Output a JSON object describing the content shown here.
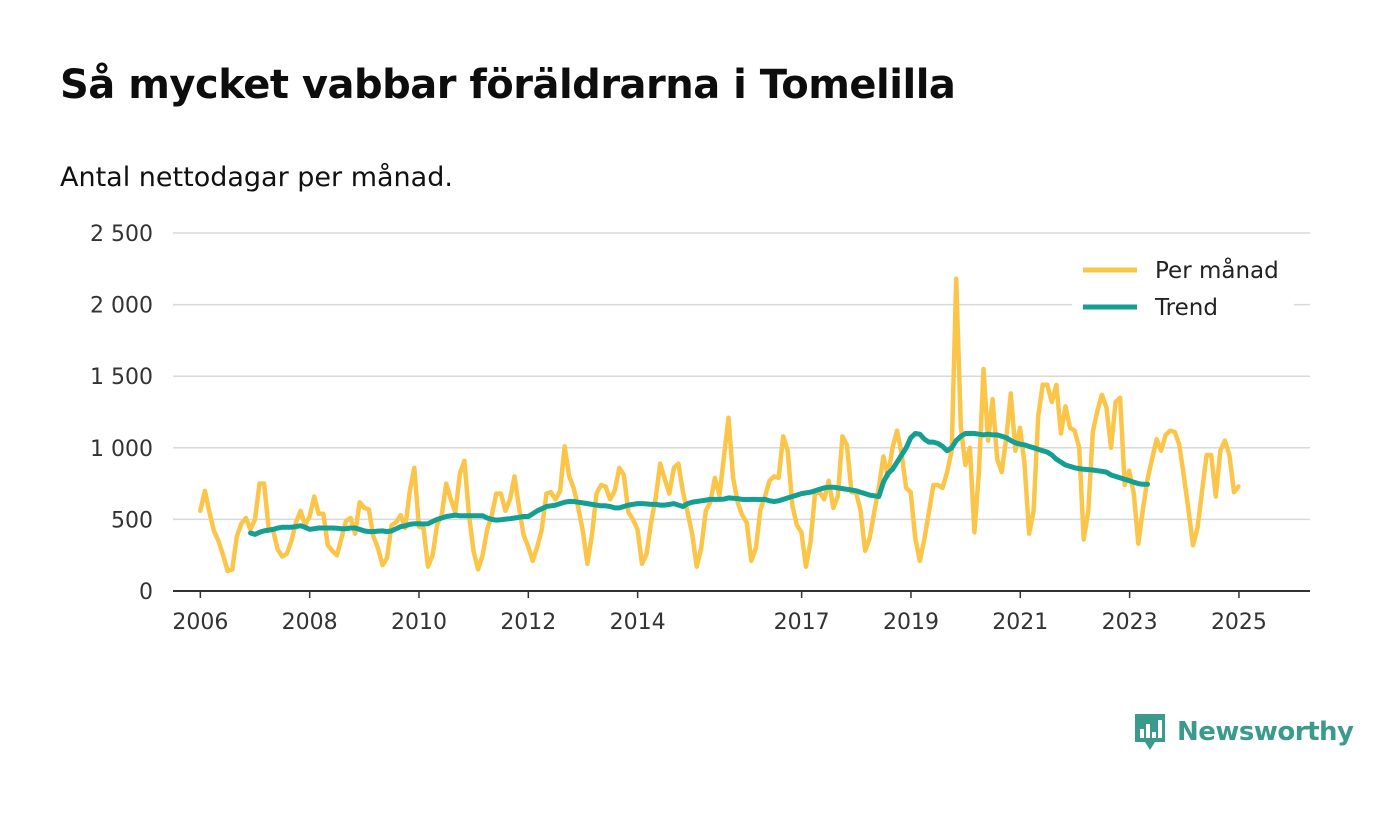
{
  "title": "Så mycket vabbar föräldrarna i Tomelilla",
  "subtitle": "Antal nettodagar per månad.",
  "brand": {
    "name": "Newsworthy",
    "icon": "bar-chart-logo-icon"
  },
  "colors": {
    "per_month": "#fbc54a",
    "trend": "#159f93",
    "grid": "#d9d9d9",
    "axis": "#333333",
    "brand": "#3a9a8c"
  },
  "chart_data": {
    "type": "line",
    "title": "Så mycket vabbar föräldrarna i Tomelilla",
    "subtitle": "Antal nettodagar per månad.",
    "xlabel": "",
    "ylabel": "",
    "ylim": [
      0,
      2500
    ],
    "xlim": [
      2005.5,
      2026.3
    ],
    "y_ticks": [
      {
        "value": 0,
        "label": "0"
      },
      {
        "value": 500,
        "label": "500"
      },
      {
        "value": 1000,
        "label": "1 000"
      },
      {
        "value": 1500,
        "label": "1 500"
      },
      {
        "value": 2000,
        "label": "2 000"
      },
      {
        "value": 2500,
        "label": "2 500"
      }
    ],
    "x_ticks": [
      {
        "value": 2006,
        "label": "2006"
      },
      {
        "value": 2008,
        "label": "2008"
      },
      {
        "value": 2010,
        "label": "2010"
      },
      {
        "value": 2012,
        "label": "2012"
      },
      {
        "value": 2014,
        "label": "2014"
      },
      {
        "value": 2017,
        "label": "2017"
      },
      {
        "value": 2019,
        "label": "2019"
      },
      {
        "value": 2021,
        "label": "2021"
      },
      {
        "value": 2023,
        "label": "2023"
      },
      {
        "value": 2025,
        "label": "2025"
      }
    ],
    "legend": {
      "position": "top-right"
    },
    "grid": true,
    "series": [
      {
        "name": "Per månad",
        "start": 2006,
        "step": 0.0833,
        "values": [
          560,
          700,
          550,
          420,
          350,
          250,
          140,
          150,
          380,
          470,
          510,
          430,
          500,
          750,
          750,
          440,
          420,
          290,
          240,
          260,
          350,
          480,
          560,
          460,
          520,
          660,
          540,
          540,
          320,
          280,
          250,
          370,
          490,
          510,
          400,
          620,
          580,
          570,
          380,
          300,
          180,
          230,
          460,
          480,
          530,
          440,
          700,
          860,
          450,
          440,
          170,
          250,
          460,
          530,
          750,
          640,
          550,
          820,
          910,
          530,
          280,
          150,
          250,
          430,
          530,
          680,
          680,
          560,
          640,
          800,
          580,
          390,
          310,
          210,
          310,
          430,
          680,
          690,
          640,
          700,
          1010,
          800,
          720,
          580,
          420,
          190,
          390,
          680,
          740,
          730,
          640,
          700,
          860,
          810,
          550,
          500,
          430,
          190,
          260,
          480,
          650,
          890,
          780,
          680,
          860,
          890,
          690,
          550,
          400,
          170,
          300,
          560,
          620,
          790,
          670,
          940,
          1210,
          790,
          620,
          530,
          480,
          210,
          300,
          570,
          660,
          770,
          800,
          790,
          1080,
          980,
          600,
          460,
          410,
          170,
          340,
          680,
          690,
          640,
          770,
          580,
          660,
          1080,
          1020,
          690,
          690,
          560,
          280,
          370,
          550,
          720,
          940,
          800,
          1000,
          1120,
          960,
          720,
          690,
          370,
          210,
          360,
          550,
          740,
          740,
          720,
          830,
          980,
          2180,
          1150,
          880,
          1000,
          410,
          840,
          1550,
          1050,
          1340,
          920,
          830,
          1070,
          1380,
          980,
          1140,
          890,
          400,
          560,
          1220,
          1440,
          1440,
          1320,
          1440,
          1100,
          1290,
          1140,
          1120,
          1000,
          360,
          560,
          1110,
          1260,
          1370,
          1280,
          1000,
          1320,
          1350,
          740,
          840,
          680,
          330,
          570,
          780,
          920,
          1060,
          980,
          1090,
          1120,
          1110,
          1020,
          800,
          570,
          320,
          440,
          700,
          950,
          950,
          660,
          980,
          1050,
          950,
          690,
          730
        ]
      },
      {
        "name": "Trend",
        "start": 2006.917,
        "step": 0.0833,
        "values": [
          405,
          395,
          410,
          420,
          425,
          430,
          440,
          445,
          445,
          445,
          450,
          455,
          445,
          430,
          435,
          440,
          440,
          440,
          440,
          438,
          435,
          436,
          440,
          440,
          430,
          420,
          415,
          415,
          418,
          420,
          415,
          420,
          435,
          450,
          455,
          465,
          470,
          470,
          468,
          470,
          485,
          500,
          510,
          520,
          525,
          530,
          525,
          525,
          525,
          525,
          525,
          525,
          510,
          500,
          495,
          498,
          502,
          505,
          510,
          515,
          520,
          520,
          540,
          560,
          575,
          590,
          595,
          600,
          610,
          620,
          625,
          625,
          620,
          615,
          610,
          605,
          600,
          595,
          595,
          590,
          580,
          580,
          590,
          600,
          605,
          610,
          610,
          608,
          605,
          605,
          600,
          600,
          605,
          610,
          600,
          590,
          610,
          620,
          625,
          630,
          635,
          640,
          640,
          640,
          642,
          650,
          648,
          645,
          640,
          638,
          640,
          640,
          638,
          640,
          630,
          625,
          630,
          640,
          650,
          660,
          670,
          680,
          685,
          690,
          700,
          710,
          720,
          725,
          725,
          720,
          715,
          710,
          705,
          700,
          690,
          680,
          670,
          665,
          660,
          760,
          820,
          850,
          900,
          950,
          1000,
          1070,
          1100,
          1095,
          1060,
          1040,
          1040,
          1030,
          1010,
          980,
          1000,
          1050,
          1080,
          1100,
          1100,
          1100,
          1095,
          1090,
          1095,
          1090,
          1090,
          1080,
          1070,
          1050,
          1035,
          1025,
          1020,
          1010,
          1000,
          990,
          980,
          970,
          950,
          920,
          900,
          880,
          870,
          860,
          855,
          850,
          848,
          845,
          840,
          835,
          830,
          810,
          800,
          790,
          780,
          770,
          760,
          750,
          745,
          745
        ]
      }
    ]
  }
}
